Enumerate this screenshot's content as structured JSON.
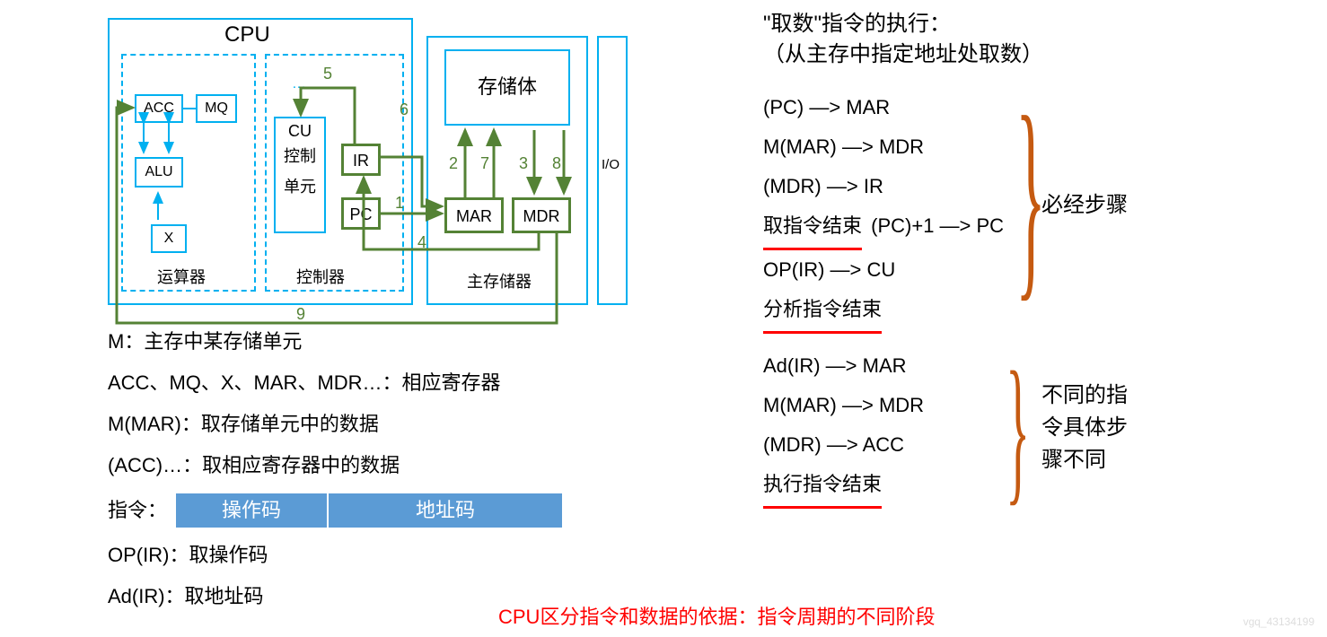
{
  "diagram": {
    "cpu_label": "CPU",
    "acc": "ACC",
    "mq": "MQ",
    "alu": "ALU",
    "x": "X",
    "cu": "CU",
    "cu_sub1": "控制",
    "cu_sub2": "单元",
    "ir": "IR",
    "pc": "PC",
    "yunsuanqi": "运算器",
    "kongzhiqi": "控制器",
    "storage": "存储体",
    "mar": "MAR",
    "mdr": "MDR",
    "zhucunchuqi": "主存储器",
    "io": "I/O",
    "nums": [
      "1",
      "2",
      "3",
      "4",
      "5",
      "6",
      "7",
      "8",
      "9"
    ],
    "colors": {
      "box_border": "#00b0f0",
      "arrow_green": "#548235",
      "arrow_blue": "#00b0f0",
      "num_color": "#548235"
    }
  },
  "left_text": {
    "l1": "M：主存中某存储单元",
    "l2": "ACC、MQ、X、MAR、MDR…：相应寄存器",
    "l3": "M(MAR)：取存储单元中的数据",
    "l4": "(ACC)…：取相应寄存器中的数据",
    "instr_lbl": "指令：",
    "opcode": "操作码",
    "addrcode": "地址码",
    "l5": "OP(IR)：取操作码",
    "l6": "Ad(IR)：取地址码"
  },
  "right_text": {
    "title1": "\"取数\"指令的执行：",
    "title2": "（从主存中指定地址处取数）",
    "steps_a": [
      "(PC) —> MAR",
      "M(MAR) —> MDR",
      "(MDR) —> IR"
    ],
    "fetch_end": "取指令结束",
    "pc_inc": "(PC)+1 —> PC",
    "op_ir": "OP(IR) —> CU",
    "analyze_end": "分析指令结束",
    "steps_b": [
      "Ad(IR) —> MAR",
      "M(MAR) —> MDR",
      "(MDR) —> ACC"
    ],
    "exec_end": "执行指令结束",
    "brace1_lbl": "必经步骤",
    "brace2_lbl": "不同的指\n令具体步\n骤不同",
    "bottom_red": "CPU区分指令和数据的依据：指令周期的不同阶段"
  },
  "watermark": "vgq_43134199"
}
